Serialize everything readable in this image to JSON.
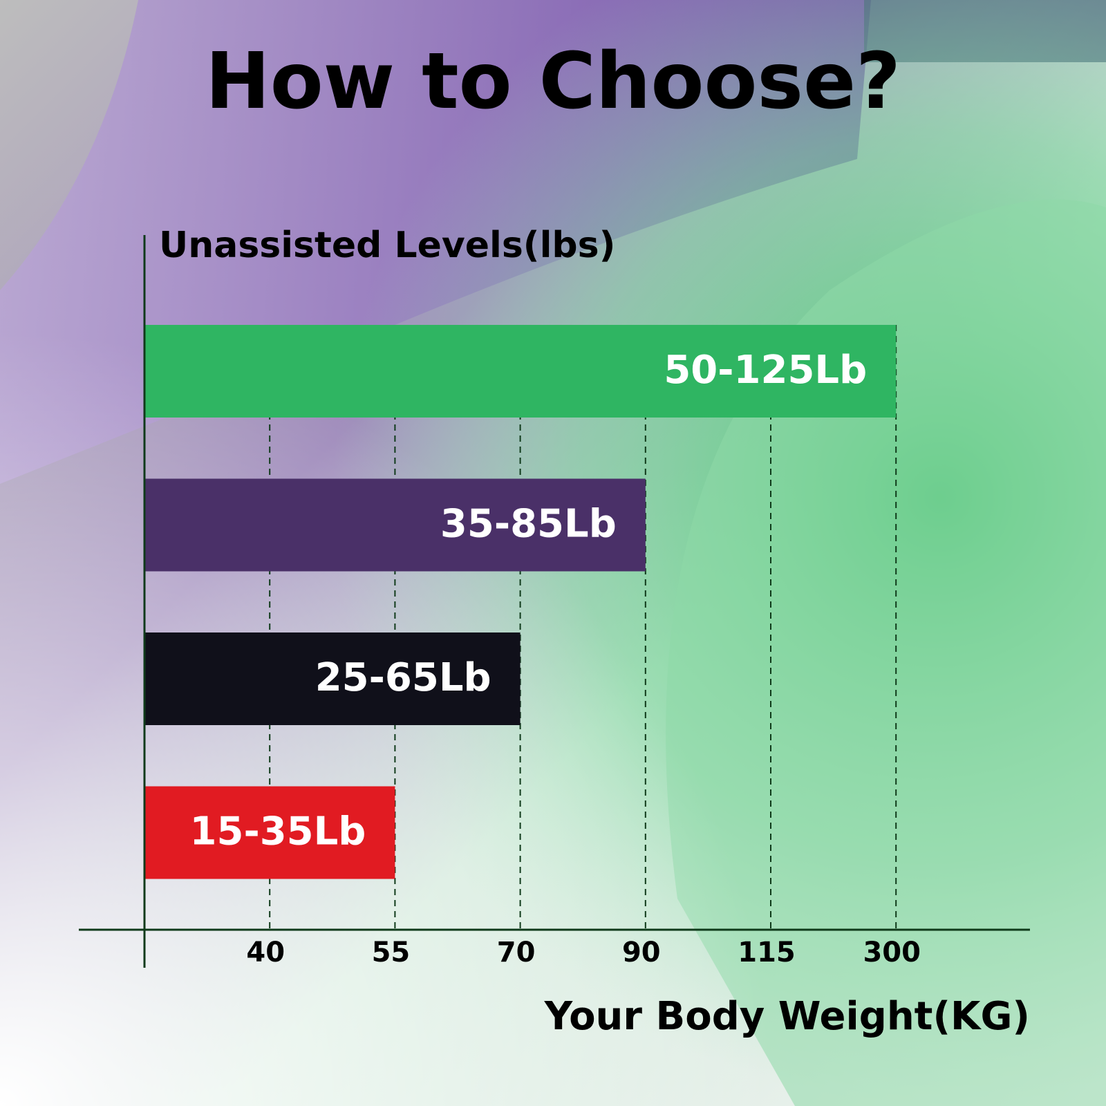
{
  "chart_data": {
    "type": "hbar",
    "title": "How to Choose?",
    "y_label": "Unassisted Levels(lbs)",
    "x_label": "Your Body Weight(KG)",
    "categories": [
      "50-125Lb",
      "35-85Lb",
      "25-65Lb",
      "15-35Lb"
    ],
    "values": [
      300,
      90,
      70,
      55
    ],
    "colors": [
      "#2fb562",
      "#4a3068",
      "#10101a",
      "#e11b22"
    ],
    "xticks": [
      40,
      55,
      70,
      90,
      115,
      300
    ],
    "grid": true
  }
}
